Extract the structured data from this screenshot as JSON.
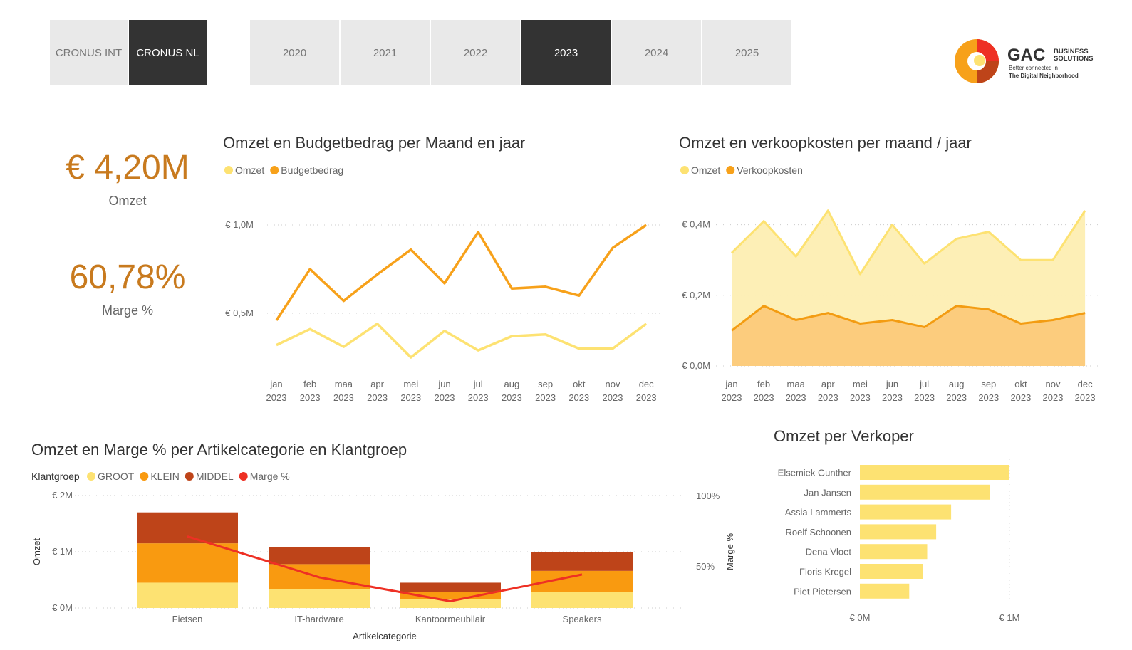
{
  "company_slicer": [
    {
      "label": "CRONUS INT",
      "selected": false
    },
    {
      "label": "CRONUS NL",
      "selected": true
    }
  ],
  "year_slicer": [
    {
      "label": "2020",
      "selected": false
    },
    {
      "label": "2021",
      "selected": false
    },
    {
      "label": "2022",
      "selected": false
    },
    {
      "label": "2023",
      "selected": true
    },
    {
      "label": "2024",
      "selected": false
    },
    {
      "label": "2025",
      "selected": false
    }
  ],
  "logo": {
    "brand": "GAC",
    "brand_sub_1": "BUSINESS",
    "brand_sub_2": "SOLUTIONS",
    "tagline_1": "Better connected in",
    "tagline_2": "The Digital Neighborhood"
  },
  "kpis": {
    "omzet_value": "€ 4,20M",
    "omzet_label": "Omzet",
    "marge_value": "60,78%",
    "marge_label": "Marge %",
    "color": "#c87a1e"
  },
  "colors": {
    "omzet": "#fde272",
    "budget": "#f7a11a",
    "verkoopkosten": "#f7a11a",
    "groot": "#fde272",
    "klein": "#f99a10",
    "middel": "#be4419",
    "marge": "#ee3024",
    "bar": "#fde272"
  },
  "chart_data": [
    {
      "type": "line",
      "title": "Omzet en Budgetbedrag per Maand en jaar",
      "x": [
        "jan|2023",
        "feb|2023",
        "maa|2023",
        "apr|2023",
        "mei|2023",
        "jun|2023",
        "jul|2023",
        "aug|2023",
        "sep|2023",
        "okt|2023",
        "nov|2023",
        "dec|2023"
      ],
      "y_ticks": [
        "€ 0,5M",
        "€ 1,0M"
      ],
      "series": [
        {
          "name": "Omzet",
          "values": [
            0.32,
            0.41,
            0.31,
            0.44,
            0.25,
            0.4,
            0.29,
            0.37,
            0.38,
            0.3,
            0.3,
            0.44
          ]
        },
        {
          "name": "Budgetbedrag",
          "values": [
            0.46,
            0.75,
            0.57,
            0.72,
            0.86,
            0.67,
            0.96,
            0.64,
            0.65,
            0.6,
            0.87,
            1.0
          ]
        }
      ]
    },
    {
      "type": "area",
      "title": "Omzet en verkoopkosten per maand / jaar",
      "x": [
        "jan|2023",
        "feb|2023",
        "maa|2023",
        "apr|2023",
        "mei|2023",
        "jun|2023",
        "jul|2023",
        "aug|2023",
        "sep|2023",
        "okt|2023",
        "nov|2023",
        "dec|2023"
      ],
      "y_ticks": [
        "€ 0,0M",
        "€ 0,2M",
        "€ 0,4M"
      ],
      "series": [
        {
          "name": "Omzet",
          "values": [
            0.32,
            0.41,
            0.31,
            0.44,
            0.26,
            0.4,
            0.29,
            0.36,
            0.38,
            0.3,
            0.3,
            0.44
          ]
        },
        {
          "name": "Verkoopkosten",
          "values": [
            0.1,
            0.17,
            0.13,
            0.15,
            0.12,
            0.13,
            0.11,
            0.17,
            0.16,
            0.12,
            0.13,
            0.15
          ]
        }
      ]
    },
    {
      "type": "bar",
      "title": "Omzet en Marge % per Artikelcategorie en Klantgroep",
      "legend_title": "Klantgroep",
      "xlabel": "Artikelcategorie",
      "ylabel": "Omzet",
      "y2label": "Marge %",
      "y_ticks": [
        "€ 0M",
        "€ 1M",
        "€ 2M"
      ],
      "y2_ticks": [
        "50%",
        "100%"
      ],
      "categories": [
        "Fietsen",
        "IT-hardware",
        "Kantoormeubilair",
        "Speakers"
      ],
      "series": [
        {
          "name": "GROOT",
          "values": [
            0.45,
            0.33,
            0.16,
            0.28
          ]
        },
        {
          "name": "KLEIN",
          "values": [
            0.7,
            0.45,
            0.12,
            0.38
          ]
        },
        {
          "name": "MIDDEL",
          "values": [
            0.55,
            0.3,
            0.17,
            0.34
          ]
        },
        {
          "name": "Marge %",
          "values": [
            71,
            42,
            25,
            44
          ]
        }
      ]
    },
    {
      "type": "bar",
      "title": "Omzet per Verkoper",
      "categories": [
        "Elsemiek Gunther",
        "Jan Jansen",
        "Assia Lammerts",
        "Roelf Schoonen",
        "Dena Vloet",
        "Floris Kregel",
        "Piet Pietersen"
      ],
      "values": [
        1.0,
        0.87,
        0.61,
        0.51,
        0.45,
        0.42,
        0.33
      ],
      "x_ticks": [
        "€ 0M",
        "€ 1M"
      ]
    }
  ]
}
